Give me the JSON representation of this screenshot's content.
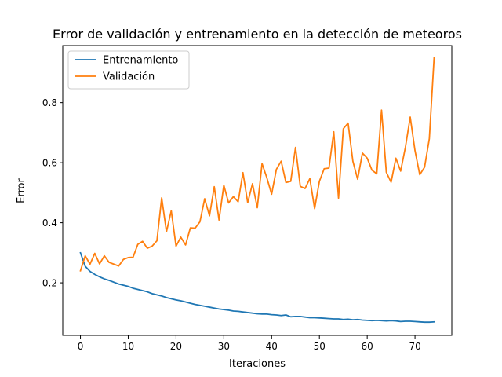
{
  "chart_data": {
    "type": "line",
    "title": "Error de validación y entrenamiento en la detección de meteoros",
    "xlabel": "Iteraciones",
    "ylabel": "Error",
    "xlim": [
      -3.7,
      77.7
    ],
    "ylim": [
      0.025,
      0.99
    ],
    "xticks": [
      0,
      10,
      20,
      30,
      40,
      50,
      60,
      70
    ],
    "yticks": [
      0.2,
      0.4,
      0.6,
      0.8
    ],
    "ytick_labels": [
      "0.2",
      "0.4",
      "0.6",
      "0.8"
    ],
    "legend_position": "top-left",
    "grid": false,
    "series": [
      {
        "name": "Entrenamiento",
        "color": "#1f77b4",
        "values": [
          0.3,
          0.255,
          0.238,
          0.228,
          0.22,
          0.213,
          0.208,
          0.202,
          0.196,
          0.192,
          0.188,
          0.182,
          0.178,
          0.174,
          0.17,
          0.164,
          0.16,
          0.156,
          0.151,
          0.147,
          0.143,
          0.14,
          0.136,
          0.132,
          0.128,
          0.125,
          0.122,
          0.119,
          0.116,
          0.113,
          0.111,
          0.109,
          0.106,
          0.105,
          0.103,
          0.101,
          0.099,
          0.097,
          0.096,
          0.096,
          0.094,
          0.093,
          0.091,
          0.093,
          0.087,
          0.088,
          0.088,
          0.086,
          0.084,
          0.084,
          0.083,
          0.082,
          0.081,
          0.08,
          0.08,
          0.078,
          0.079,
          0.077,
          0.078,
          0.076,
          0.075,
          0.074,
          0.075,
          0.074,
          0.073,
          0.074,
          0.073,
          0.071,
          0.072,
          0.072,
          0.071,
          0.07,
          0.069,
          0.069,
          0.07
        ]
      },
      {
        "name": "Validación",
        "color": "#ff7f0e",
        "values": [
          0.24,
          0.29,
          0.262,
          0.298,
          0.263,
          0.29,
          0.268,
          0.262,
          0.256,
          0.278,
          0.284,
          0.285,
          0.328,
          0.338,
          0.315,
          0.322,
          0.34,
          0.483,
          0.37,
          0.44,
          0.322,
          0.352,
          0.326,
          0.383,
          0.382,
          0.403,
          0.48,
          0.423,
          0.52,
          0.409,
          0.525,
          0.466,
          0.487,
          0.47,
          0.567,
          0.467,
          0.53,
          0.45,
          0.597,
          0.55,
          0.495,
          0.578,
          0.605,
          0.534,
          0.538,
          0.651,
          0.521,
          0.514,
          0.547,
          0.447,
          0.538,
          0.58,
          0.582,
          0.703,
          0.482,
          0.713,
          0.732,
          0.605,
          0.545,
          0.632,
          0.615,
          0.575,
          0.563,
          0.775,
          0.568,
          0.535,
          0.615,
          0.572,
          0.652,
          0.752,
          0.64,
          0.56,
          0.585,
          0.68,
          0.95
        ]
      }
    ]
  }
}
